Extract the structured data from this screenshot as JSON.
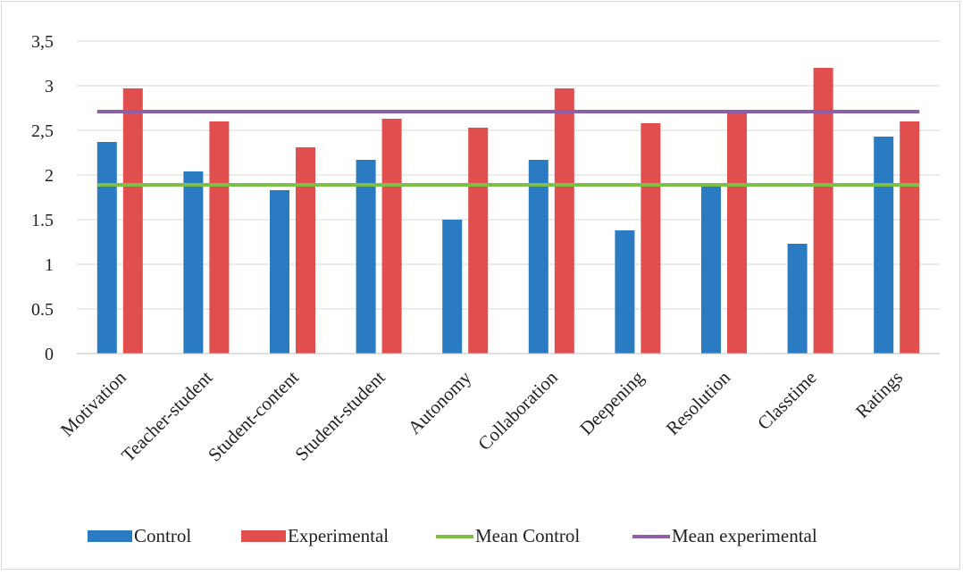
{
  "chart_data": {
    "type": "bar",
    "title": "",
    "xlabel": "",
    "ylabel": "",
    "ylim": [
      0,
      3.5
    ],
    "yticks": [
      "0",
      "0.5",
      "1",
      "1.5",
      "2",
      "2,5",
      "3",
      "3,5"
    ],
    "grid": true,
    "legend_position": "bottom",
    "categories": [
      "Motivation",
      "Teacher-student",
      "Student-content",
      "Student-student",
      "Autonomy",
      "Collaboration",
      "Deepening",
      "Resolution",
      "Classtime",
      "Ratings"
    ],
    "series": [
      {
        "name": "Control",
        "kind": "bar",
        "color": "#2a7bc2",
        "values": [
          2.37,
          2.04,
          1.83,
          2.17,
          1.5,
          2.17,
          1.38,
          1.9,
          1.23,
          2.43
        ]
      },
      {
        "name": "Experimental",
        "kind": "bar",
        "color": "#e04f4d",
        "values": [
          2.97,
          2.6,
          2.31,
          2.63,
          2.53,
          2.97,
          2.58,
          2.73,
          3.2,
          2.6
        ]
      },
      {
        "name": "Mean Control",
        "kind": "line",
        "color": "#7dc047",
        "value": 1.89
      },
      {
        "name": "Mean experimental",
        "kind": "line",
        "color": "#8e5fa8",
        "value": 2.71
      }
    ]
  }
}
